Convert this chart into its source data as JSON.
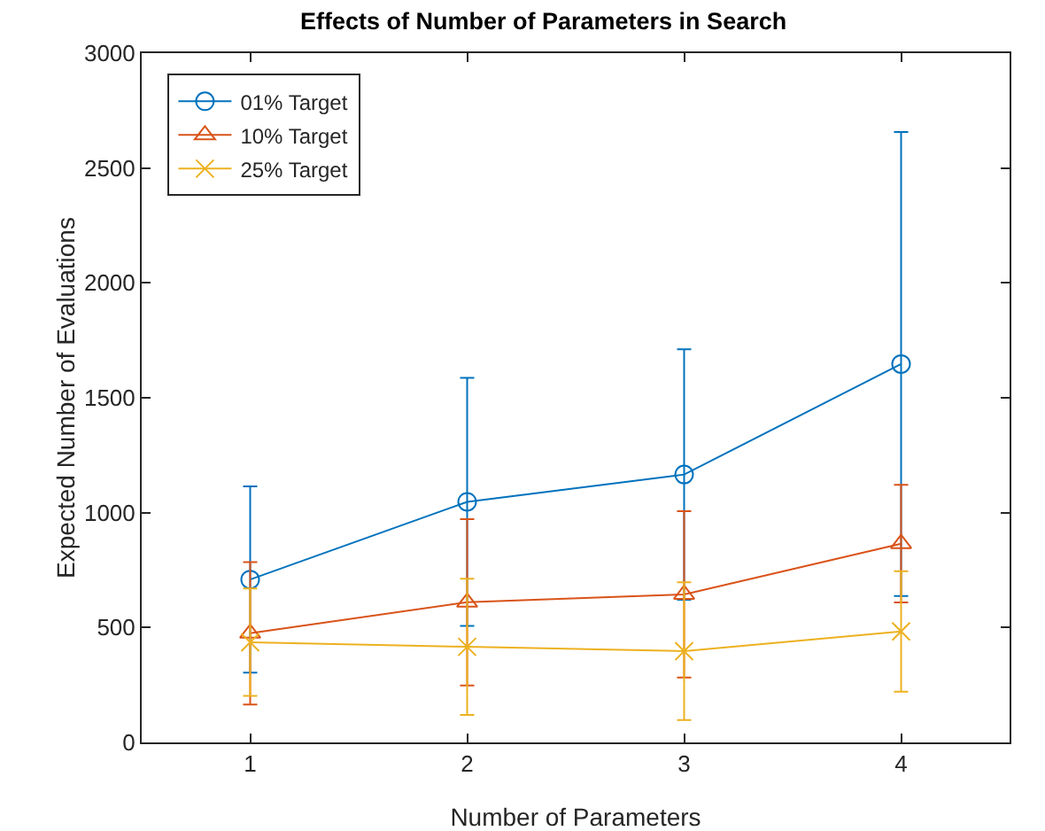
{
  "chart_data": {
    "type": "line",
    "title": "Effects of Number of Parameters in Search",
    "xlabel": "Number of Parameters",
    "ylabel": "Expected Number of Evaluations",
    "x": [
      1,
      2,
      3,
      4
    ],
    "xlim": [
      0.5,
      4.5
    ],
    "xticks": [
      1,
      2,
      3,
      4
    ],
    "ylim": [
      0,
      3000
    ],
    "yticks": [
      0,
      500,
      1000,
      1500,
      2000,
      2500,
      3000
    ],
    "grid": false,
    "legend": "top left",
    "series": [
      {
        "name": "01% Target",
        "color": "#0072bd",
        "marker": "circle",
        "values": [
          709,
          1047,
          1166,
          1647
        ],
        "errors": [
          405,
          540,
          545,
          1010
        ]
      },
      {
        "name": "10% Target",
        "color": "#d95319",
        "marker": "triangle",
        "values": [
          475,
          610,
          644,
          865
        ],
        "errors": [
          310,
          362,
          362,
          256
        ]
      },
      {
        "name": "25% Target",
        "color": "#edb120",
        "marker": "cross",
        "values": [
          436,
          416,
          397,
          483
        ],
        "errors": [
          234,
          296,
          300,
          262
        ]
      }
    ]
  }
}
